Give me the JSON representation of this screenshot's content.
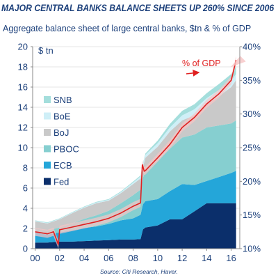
{
  "header": {
    "title": "MAJOR CENTRAL BANKS BALANCE SHEETS UP 260% SINCE 2006",
    "subtitle": "Aggregate balance sheet of large central banks, $tn & % of GDP"
  },
  "footer": {
    "source": "Source: Citi Research, Haver."
  },
  "colors": {
    "Fed": "#0b2f6b",
    "ECB": "#24a6d9",
    "PBOC": "#86cfd0",
    "BoJ": "#c9c9c9",
    "BoE": "#cfeff7",
    "SNB": "#a4dedc",
    "gdp_line": "#e02020",
    "gdp_band": "#f6c4c4",
    "text": "#1b3f7a"
  },
  "chart_data": {
    "type": "area",
    "stacked": true,
    "x": [
      2000,
      2001,
      2002,
      2003,
      2004,
      2005,
      2006,
      2007,
      2008,
      2008.6,
      2008.8,
      2009,
      2010,
      2011,
      2012,
      2013,
      2014,
      2015,
      2016,
      2016.4
    ],
    "xticks": [
      "00",
      "02",
      "04",
      "06",
      "08",
      "10",
      "12",
      "14",
      "16"
    ],
    "xtick_values": [
      2000,
      2002,
      2004,
      2006,
      2008,
      2010,
      2012,
      2014,
      2016
    ],
    "xlim": [
      1999.8,
      2016.7
    ],
    "y_left_label": "$ tn",
    "y_left_ticks": [
      "0",
      "2",
      "4",
      "6",
      "8",
      "10",
      "12",
      "14",
      "16",
      "18",
      "20"
    ],
    "ylim_left": [
      0,
      20
    ],
    "y_right_ticks": [
      "10%",
      "15%",
      "20%",
      "25%",
      "30%",
      "35%",
      "40%"
    ],
    "ylim_right": [
      10,
      40
    ],
    "legend_order_top_to_bottom": [
      "SNB",
      "BoE",
      "BoJ",
      "PBOC",
      "ECB",
      "Fed"
    ],
    "series": [
      {
        "name": "Fed",
        "values": [
          0.6,
          0.6,
          0.7,
          0.7,
          0.75,
          0.8,
          0.85,
          0.9,
          0.9,
          0.95,
          1.9,
          2.1,
          2.3,
          2.9,
          2.9,
          3.7,
          4.5,
          4.5,
          4.5,
          4.5
        ]
      },
      {
        "name": "ECB",
        "values": [
          1.0,
          0.8,
          0.9,
          1.1,
          1.3,
          1.4,
          1.6,
          1.9,
          2.1,
          2.4,
          2.5,
          2.6,
          2.6,
          2.8,
          3.5,
          2.6,
          2.2,
          2.6,
          3.0,
          3.2
        ]
      },
      {
        "name": "PBOC",
        "values": [
          0.4,
          0.4,
          0.5,
          0.7,
          0.9,
          1.1,
          1.3,
          1.7,
          2.3,
          2.5,
          2.6,
          3.1,
          3.8,
          4.2,
          4.6,
          5.0,
          5.3,
          5.1,
          4.9,
          5.0
        ]
      },
      {
        "name": "BoJ",
        "values": [
          0.7,
          0.7,
          0.8,
          1.0,
          1.1,
          1.2,
          1.0,
          1.0,
          1.1,
          1.1,
          1.1,
          1.2,
          1.4,
          1.7,
          1.7,
          1.9,
          2.3,
          2.9,
          3.6,
          4.0
        ]
      },
      {
        "name": "BoE",
        "values": [
          0.05,
          0.05,
          0.05,
          0.06,
          0.07,
          0.08,
          0.09,
          0.1,
          0.15,
          0.2,
          0.25,
          0.3,
          0.35,
          0.4,
          0.5,
          0.6,
          0.6,
          0.6,
          0.6,
          0.6
        ]
      },
      {
        "name": "SNB",
        "values": [
          0.05,
          0.05,
          0.05,
          0.05,
          0.05,
          0.06,
          0.06,
          0.07,
          0.1,
          0.1,
          0.1,
          0.12,
          0.25,
          0.35,
          0.45,
          0.5,
          0.5,
          0.6,
          0.7,
          0.75
        ]
      }
    ],
    "gdp_pct": {
      "name": "% of GDP",
      "axis": "right",
      "x": [
        2000,
        2001,
        2001.5,
        2001.9,
        2002,
        2003,
        2004,
        2005,
        2006,
        2007,
        2008,
        2008.6,
        2008.75,
        2008.9,
        2009,
        2010,
        2011,
        2012,
        2013,
        2014,
        2015,
        2016,
        2016.4
      ],
      "values": [
        12.5,
        12.2,
        12.5,
        10.6,
        12.8,
        13.2,
        13.6,
        14.0,
        14.5,
        15.3,
        16.3,
        16.8,
        22.5,
        21.5,
        21.6,
        23.5,
        25.5,
        28.0,
        29.5,
        31.5,
        33.0,
        35.0,
        38.0
      ]
    },
    "annotations": [
      {
        "text": "% of GDP"
      }
    ]
  }
}
